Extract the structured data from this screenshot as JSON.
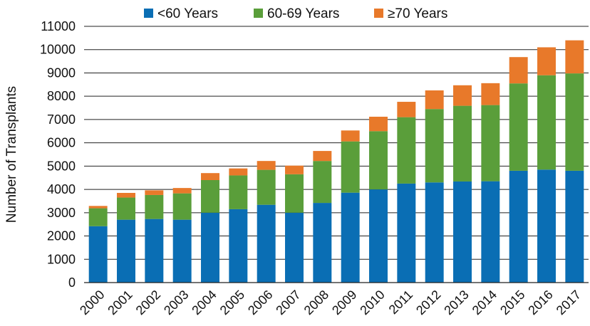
{
  "chart_data": {
    "type": "bar",
    "stacked": true,
    "title": "",
    "xlabel": "",
    "ylabel": "Number of Transplants",
    "ylim": [
      0,
      11000
    ],
    "yticks": [
      0,
      1000,
      2000,
      3000,
      4000,
      5000,
      6000,
      7000,
      8000,
      9000,
      10000,
      11000
    ],
    "grid": true,
    "legend_position": "top",
    "categories": [
      "2000",
      "2001",
      "2002",
      "2003",
      "2004",
      "2005",
      "2006",
      "2007",
      "2008",
      "2009",
      "2010",
      "2011",
      "2012",
      "2013",
      "2014",
      "2015",
      "2016",
      "2017"
    ],
    "series": [
      {
        "name": "<60 Years",
        "color": "#0a6eb4",
        "values": [
          2420,
          2700,
          2730,
          2700,
          3000,
          3150,
          3340,
          3000,
          3420,
          3860,
          4000,
          4250,
          4300,
          4340,
          4350,
          4800,
          4850,
          4800
        ]
      },
      {
        "name": "60-69 Years",
        "color": "#5a9e3a",
        "values": [
          770,
          950,
          1030,
          1130,
          1400,
          1450,
          1500,
          1650,
          1800,
          2200,
          2500,
          2850,
          3150,
          3250,
          3270,
          3750,
          4050,
          4180
        ]
      },
      {
        "name": "≥70 Years",
        "color": "#e8792a",
        "values": [
          100,
          200,
          200,
          230,
          300,
          300,
          380,
          370,
          430,
          470,
          620,
          660,
          800,
          880,
          940,
          1130,
          1200,
          1420
        ]
      }
    ]
  }
}
